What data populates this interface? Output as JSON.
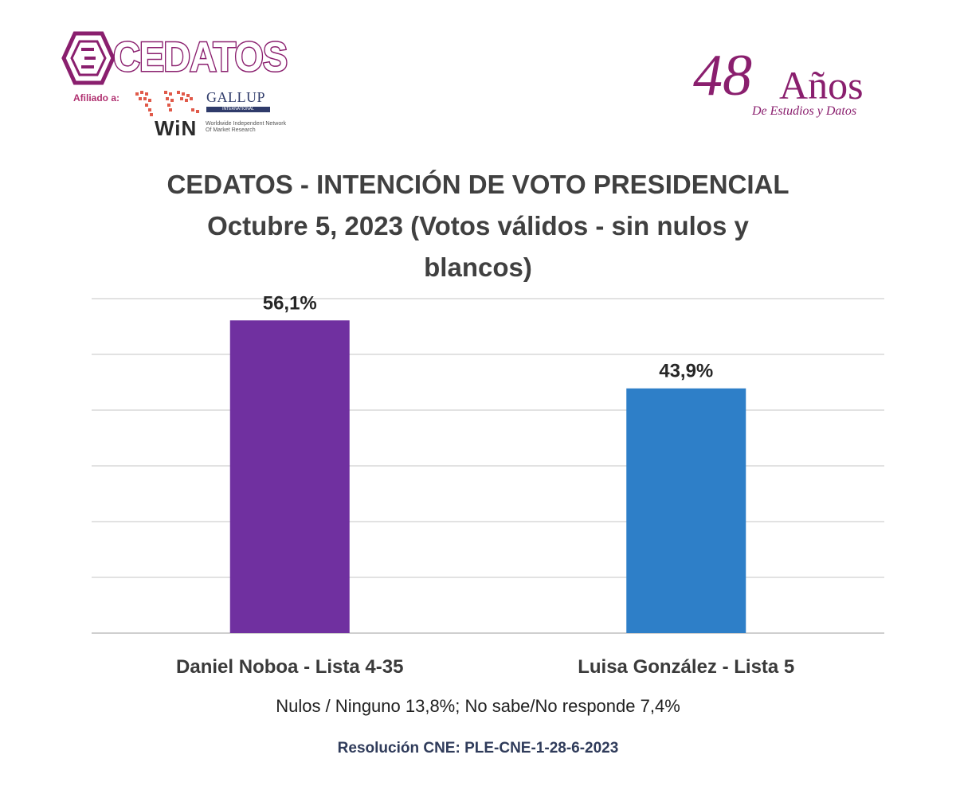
{
  "logos": {
    "brand": "CEDATOS",
    "affiliate_label": "Afiliado a:",
    "gallup": "GALLUP",
    "gallup_sub": "INTERNATIONAL",
    "win": "WiN",
    "win_sub": "Worldwide Independent Network Of Market Research",
    "anniversary_number": "48",
    "anniversary_word": "Años",
    "anniversary_sub": "De Estudios y Datos"
  },
  "colors": {
    "brand": "#8a1f6e",
    "bar_noboa": "#7030a0",
    "bar_gonzalez": "#2e7fc8"
  },
  "chart_data": {
    "type": "bar",
    "title": "CEDATOS - INTENCIÓN DE VOTO PRESIDENCIAL",
    "subtitle_line1": "Octubre 5, 2023 (Votos válidos - sin nulos y",
    "subtitle_line2": "blancos)",
    "categories": [
      "Daniel Noboa - Lista 4-35",
      "Luisa González - Lista 5"
    ],
    "values": [
      56.1,
      43.9
    ],
    "value_labels": [
      "56,1%",
      "43,9%"
    ],
    "ylim": [
      0,
      60
    ],
    "grid": true,
    "xlabel": "",
    "ylabel": ""
  },
  "footnote": "Nulos / Ninguno 13,8%; No sabe/No responde 7,4%",
  "resolution": "Resolución CNE: PLE-CNE-1-28-6-2023"
}
